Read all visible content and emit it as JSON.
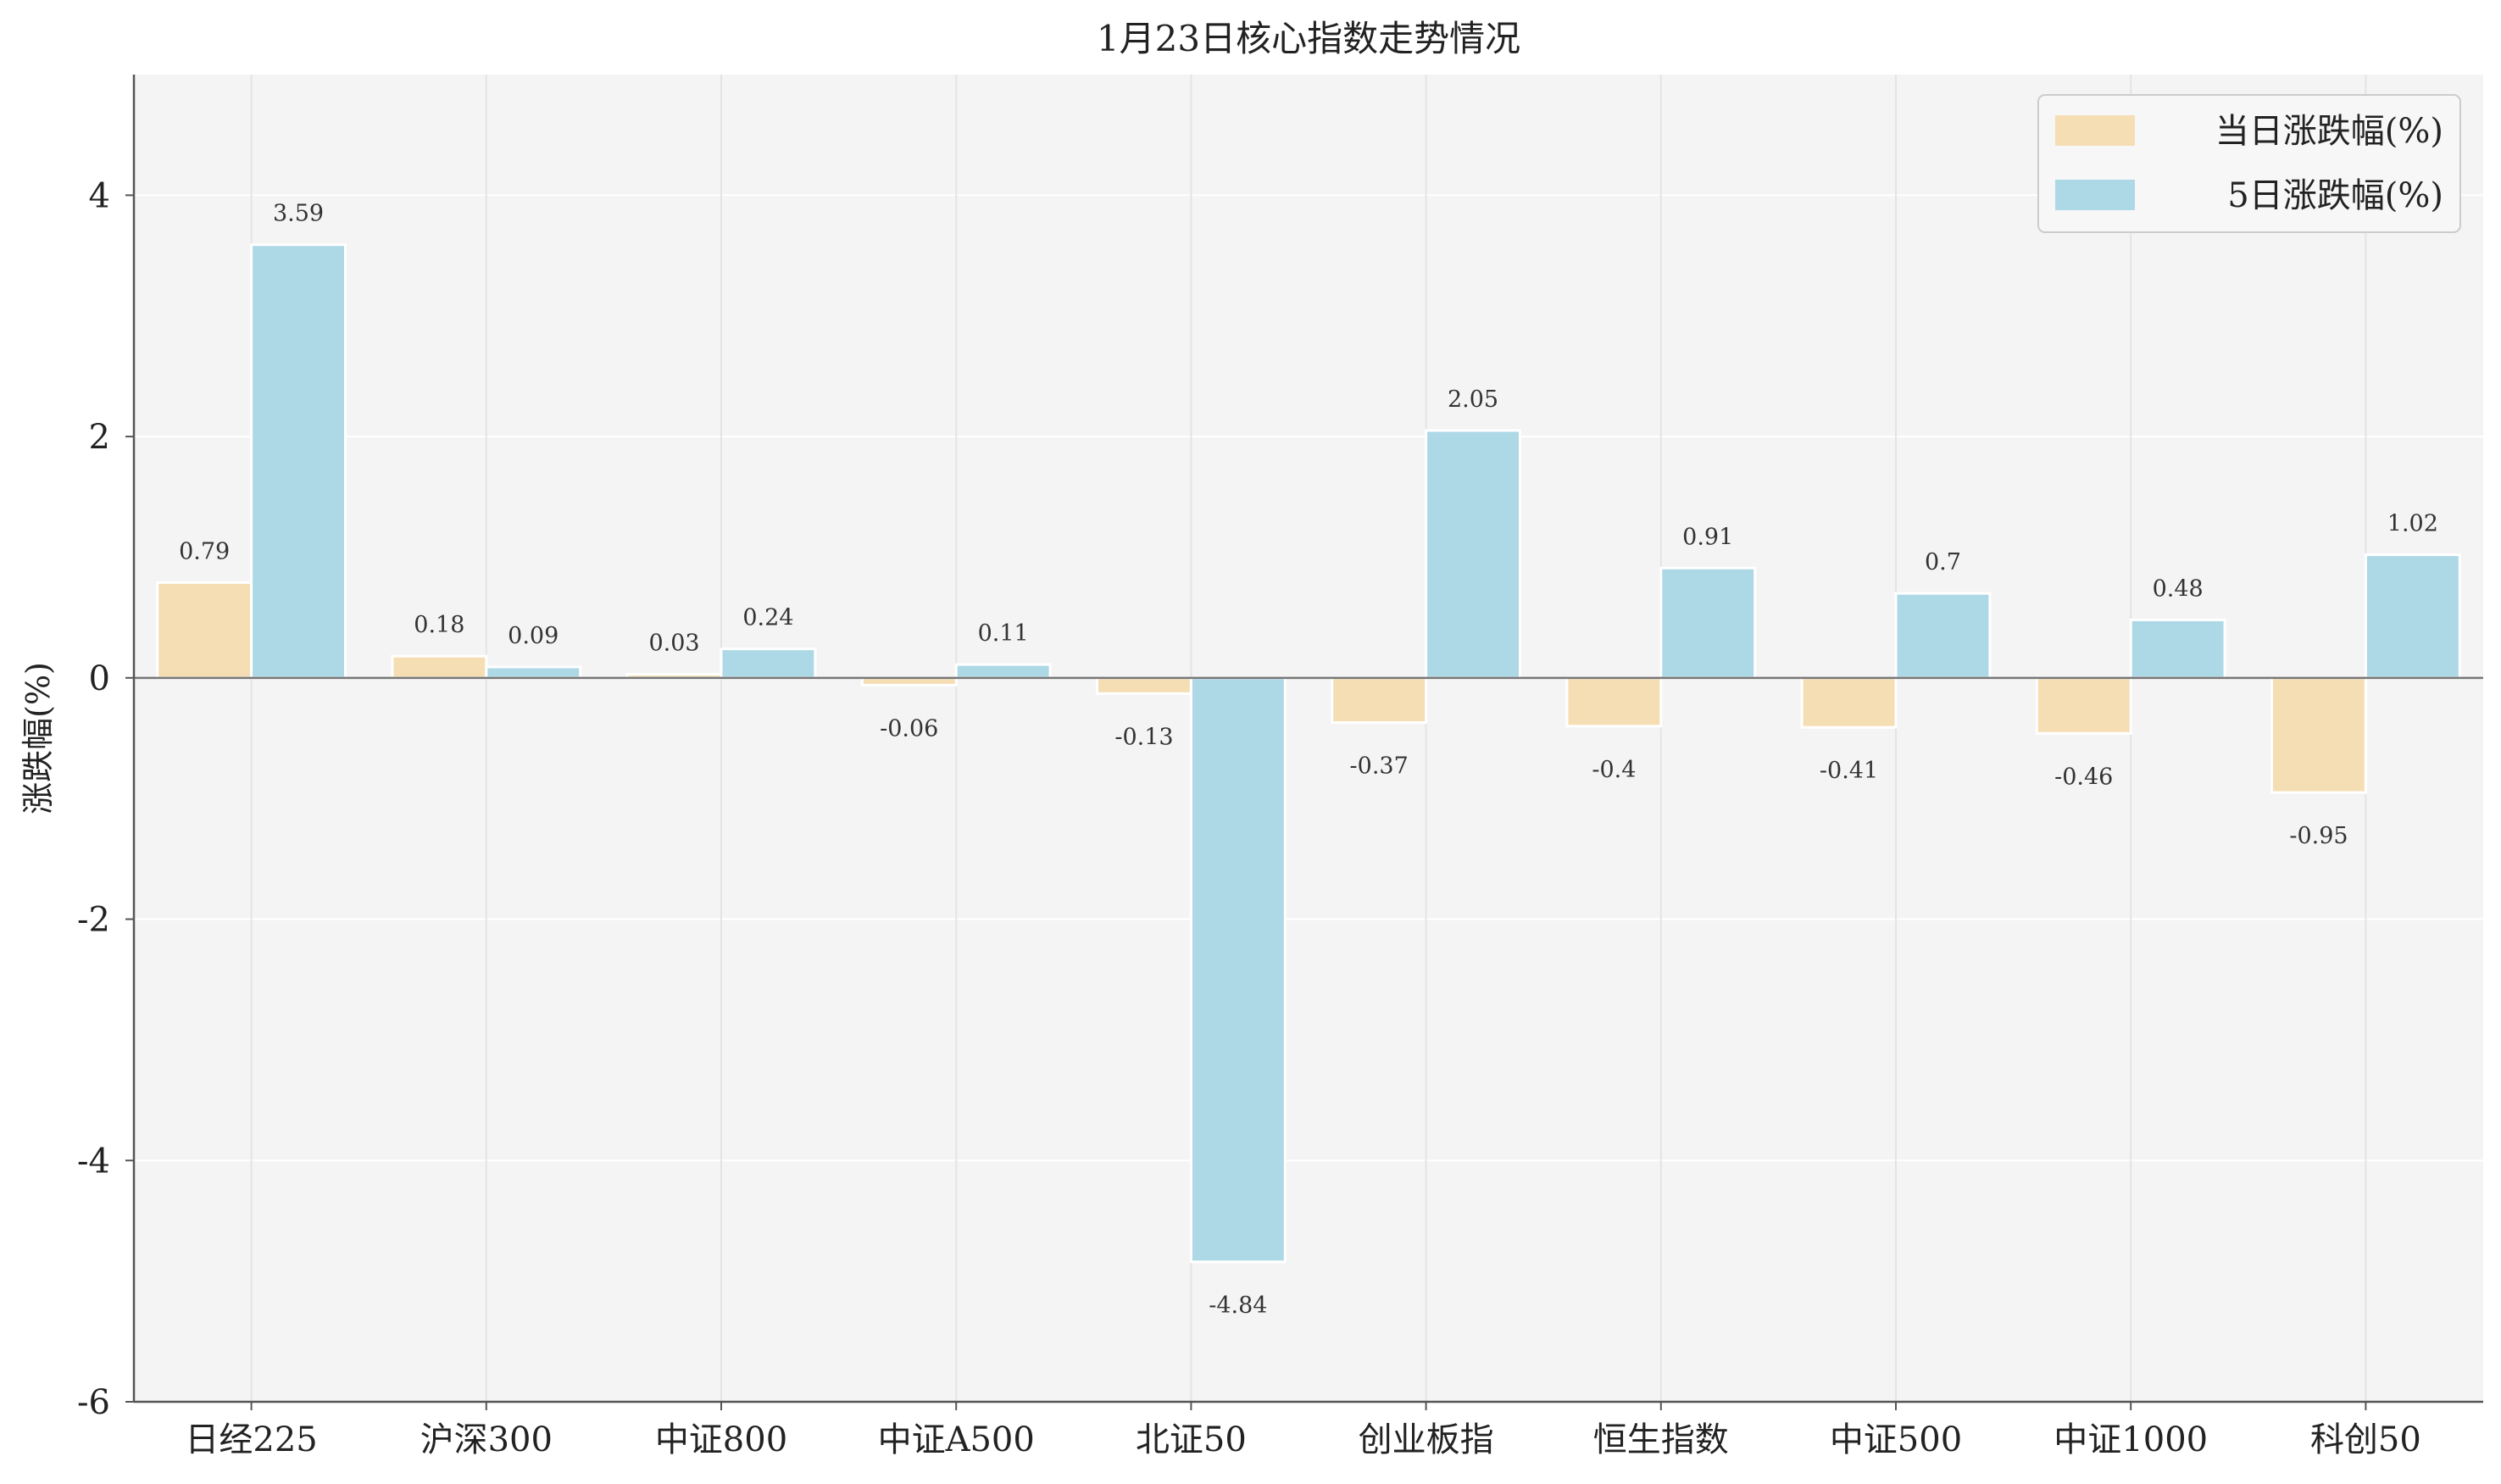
{
  "chart_data": {
    "type": "bar",
    "title": "1月23日核心指数走势情况",
    "xlabel": "",
    "ylabel": "涨跌幅(%)",
    "ylim": [
      -6,
      5
    ],
    "yticks": [
      -6,
      -4,
      -2,
      0,
      2,
      4
    ],
    "grid": true,
    "legend_position": "top-right",
    "categories": [
      "日经225",
      "沪深300",
      "中证800",
      "中证A500",
      "北证50",
      "创业板指",
      "恒生指数",
      "中证500",
      "中证1000",
      "科创50"
    ],
    "series": [
      {
        "name": "当日涨跌幅(%)",
        "color": "#F5DEB3",
        "values": [
          0.79,
          0.18,
          0.03,
          -0.06,
          -0.13,
          -0.37,
          -0.4,
          -0.41,
          -0.46,
          -0.95
        ]
      },
      {
        "name": "5日涨跌幅(%)",
        "color": "#ADD8E6",
        "values": [
          3.59,
          0.09,
          0.24,
          0.11,
          -4.84,
          2.05,
          0.91,
          0.7,
          0.48,
          1.02
        ]
      }
    ]
  }
}
